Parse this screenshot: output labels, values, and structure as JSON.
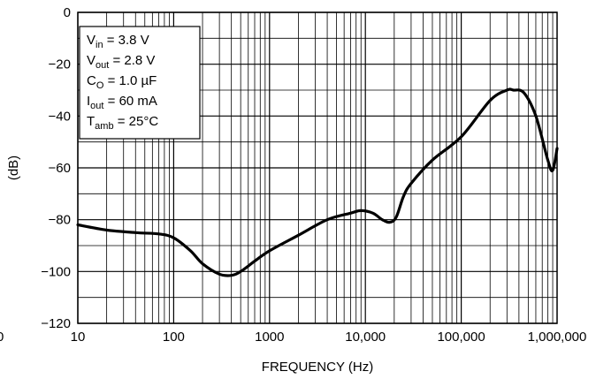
{
  "chart_data": {
    "type": "line",
    "title": "",
    "xlabel": "FREQUENCY (Hz)",
    "ylabel": "(dB)",
    "x_scale": "log",
    "xlim": [
      10,
      1000000
    ],
    "ylim": [
      -120,
      0
    ],
    "grid": true,
    "x_tick_labels": [
      "10",
      "100",
      "1000",
      "10,000",
      "100,000",
      "1,000,000"
    ],
    "x_ticks": [
      10,
      100,
      1000,
      10000,
      100000,
      1000000
    ],
    "y_tick_labels": [
      "0",
      "−20",
      "−40",
      "−60",
      "−80",
      "−100",
      "−120"
    ],
    "y_ticks": [
      0,
      -20,
      -40,
      -60,
      -80,
      -100,
      -120
    ],
    "left_edge_label": "0",
    "legend": {
      "placement": "top-left",
      "lines": [
        {
          "main": "V",
          "sub": "in",
          "rest": " = 3.8 V"
        },
        {
          "main": "V",
          "sub": "out",
          "rest": " = 2.8 V"
        },
        {
          "main": "C",
          "sub": "O",
          "rest": " = 1.0 µF"
        },
        {
          "main": "I",
          "sub": "out",
          "rest": " = 60 mA"
        },
        {
          "main": "T",
          "sub": "amb",
          "rest": " = 25°C"
        }
      ]
    },
    "series": [
      {
        "color": "#000000",
        "x": [
          10,
          20,
          40,
          70,
          100,
          150,
          200,
          300,
          400,
          500,
          700,
          1000,
          2000,
          4000,
          7000,
          9000,
          12000,
          15000,
          18000,
          21000,
          25000,
          30000,
          50000,
          100000,
          200000,
          300000,
          350000,
          450000,
          600000,
          800000,
          900000,
          1000000
        ],
        "y": [
          -82,
          -84,
          -85,
          -85.5,
          -87,
          -92,
          -97,
          -101,
          -101.5,
          -100,
          -96,
          -92,
          -86,
          -80,
          -77.5,
          -76.5,
          -77.5,
          -80,
          -81,
          -79,
          -71,
          -66,
          -57,
          -48,
          -34,
          -30,
          -30,
          -31,
          -40,
          -57,
          -61,
          -52.5
        ]
      }
    ]
  }
}
